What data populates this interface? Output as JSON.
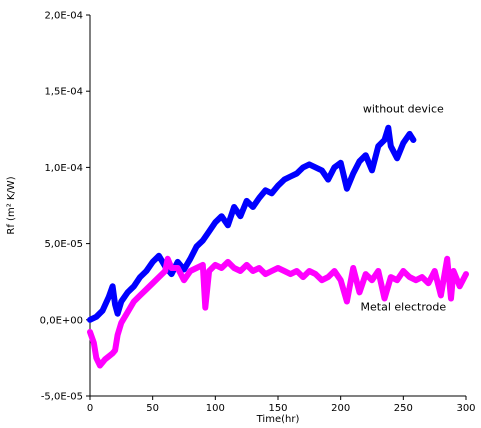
{
  "chart_data": {
    "type": "line",
    "title": "",
    "xlabel": "Time(hr)",
    "ylabel": "Rf (m² K/W)",
    "xlim": [
      0,
      300
    ],
    "ylim": [
      -5e-05,
      0.0002
    ],
    "x_ticks": [
      0,
      50,
      100,
      150,
      200,
      250,
      300
    ],
    "x_tick_labels": [
      "0",
      "50",
      "100",
      "150",
      "200",
      "250",
      "300"
    ],
    "y_ticks": [
      -5e-05,
      0,
      5e-05,
      0.0001,
      0.00015,
      0.0002
    ],
    "y_tick_labels": [
      "-5,0E-05",
      "0,0E+00",
      "5,0E-05",
      "1,0E-04",
      "1,5E-04",
      "2,0E-04"
    ],
    "grid": false,
    "series": [
      {
        "name": "without device",
        "color": "#0000ff",
        "x": [
          0,
          5,
          10,
          15,
          18,
          20,
          22,
          25,
          30,
          35,
          40,
          45,
          50,
          55,
          60,
          65,
          70,
          75,
          80,
          85,
          90,
          95,
          100,
          105,
          110,
          115,
          120,
          125,
          130,
          135,
          140,
          145,
          150,
          155,
          160,
          165,
          170,
          175,
          180,
          185,
          190,
          195,
          200,
          205,
          210,
          215,
          220,
          225,
          230,
          235,
          238,
          240,
          245,
          250,
          255,
          258
        ],
        "y": [
          0,
          2e-06,
          6e-06,
          1.5e-05,
          2.2e-05,
          1e-05,
          4e-06,
          1.2e-05,
          1.8e-05,
          2.2e-05,
          2.8e-05,
          3.2e-05,
          3.8e-05,
          4.2e-05,
          3.5e-05,
          3e-05,
          3.8e-05,
          3.3e-05,
          4e-05,
          4.8e-05,
          5.2e-05,
          5.8e-05,
          6.4e-05,
          6.8e-05,
          6.2e-05,
          7.4e-05,
          6.8e-05,
          7.8e-05,
          7.4e-05,
          8e-05,
          8.5e-05,
          8.3e-05,
          8.8e-05,
          9.2e-05,
          9.4e-05,
          9.6e-05,
          0.0001,
          0.000102,
          0.0001,
          9.8e-05,
          9.2e-05,
          0.0001,
          0.000103,
          8.6e-05,
          9.6e-05,
          0.000104,
          0.000108,
          9.8e-05,
          0.000114,
          0.000118,
          0.000126,
          0.000114,
          0.000106,
          0.000116,
          0.000122,
          0.000118
        ]
      },
      {
        "name": "Metal electrode",
        "color": "#ff00ff",
        "x": [
          0,
          3,
          5,
          8,
          10,
          12,
          15,
          18,
          20,
          22,
          25,
          30,
          35,
          40,
          45,
          50,
          55,
          60,
          62,
          65,
          70,
          75,
          80,
          85,
          90,
          92,
          95,
          100,
          105,
          110,
          115,
          120,
          125,
          130,
          135,
          140,
          145,
          150,
          155,
          160,
          165,
          170,
          175,
          180,
          185,
          190,
          195,
          200,
          205,
          210,
          215,
          220,
          225,
          230,
          235,
          240,
          245,
          250,
          255,
          260,
          265,
          270,
          275,
          280,
          285,
          288,
          290,
          295,
          300
        ],
        "y": [
          -8e-06,
          -1.5e-05,
          -2.5e-05,
          -3e-05,
          -2.8e-05,
          -2.6e-05,
          -2.4e-05,
          -2.2e-05,
          -2e-05,
          -1e-05,
          -2e-06,
          5e-06,
          1.2e-05,
          1.6e-05,
          2e-05,
          2.4e-05,
          2.8e-05,
          3.2e-05,
          4e-05,
          3.4e-05,
          3.4e-05,
          2.6e-05,
          3.2e-05,
          3.4e-05,
          3.6e-05,
          8e-06,
          3.2e-05,
          3.6e-05,
          3.4e-05,
          3.8e-05,
          3.4e-05,
          3.2e-05,
          3.6e-05,
          3.2e-05,
          3.4e-05,
          3e-05,
          3.2e-05,
          3.4e-05,
          3.2e-05,
          3e-05,
          3.2e-05,
          2.8e-05,
          3.2e-05,
          3e-05,
          2.6e-05,
          2.8e-05,
          3.2e-05,
          2.6e-05,
          1.2e-05,
          3.4e-05,
          1.8e-05,
          3e-05,
          2.6e-05,
          3.2e-05,
          1.4e-05,
          2.8e-05,
          2.6e-05,
          3.2e-05,
          2.8e-05,
          2.6e-05,
          2.8e-05,
          2.4e-05,
          3.2e-05,
          1.6e-05,
          4e-05,
          1.4e-05,
          3.2e-05,
          2.2e-05,
          3e-05
        ]
      }
    ],
    "annotations": [
      {
        "text": "without device",
        "x": 250,
        "y": 0.000136
      },
      {
        "text": "Metal electrode",
        "x": 250,
        "y": 6e-06
      }
    ]
  }
}
